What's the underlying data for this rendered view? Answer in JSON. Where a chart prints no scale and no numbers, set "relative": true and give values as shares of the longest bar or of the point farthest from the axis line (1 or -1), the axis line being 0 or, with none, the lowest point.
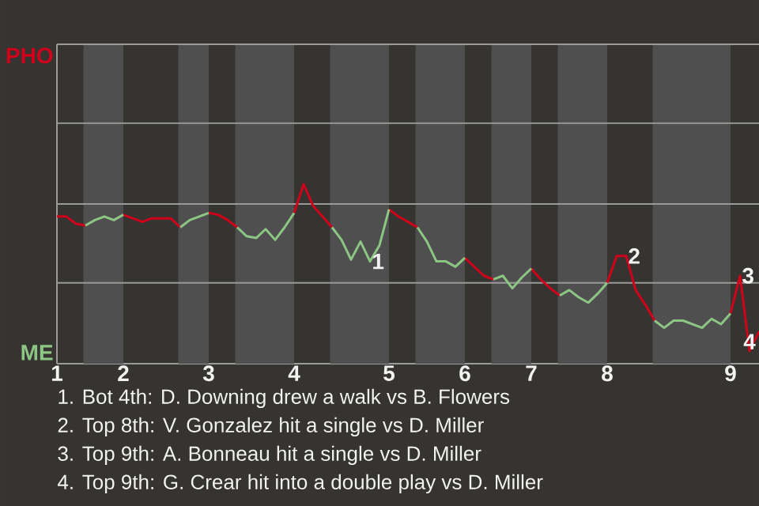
{
  "chart_data": {
    "type": "line",
    "relative": true,
    "tick_labels": "x",
    "line_style": "solid",
    "categories": [
      "1",
      null,
      null,
      null,
      null,
      null,
      null,
      "2",
      null,
      null,
      null,
      null,
      null,
      null,
      null,
      null,
      "3",
      null,
      null,
      null,
      null,
      null,
      null,
      null,
      null,
      "4",
      null,
      null,
      null,
      null,
      null,
      null,
      null,
      null,
      null,
      "5",
      null,
      null,
      null,
      null,
      null,
      null,
      null,
      "6",
      null,
      null,
      null,
      null,
      null,
      null,
      "7",
      null,
      null,
      null,
      null,
      null,
      null,
      null,
      "8",
      null,
      null,
      null,
      null,
      null,
      null,
      null,
      null,
      null,
      null,
      null,
      null,
      "9",
      null,
      null,
      null
    ],
    "ref_lines": [
      {
        "axis": "y",
        "value": 0.45,
        "color": "#9a9a9a"
      },
      {
        "axis": "y",
        "value": 0.89,
        "color": "#9a9a9a"
      },
      {
        "axis": "y",
        "value": 1.34,
        "color": "#9a9a9a"
      },
      {
        "axis": "y",
        "value": 1.78,
        "color": "#9a9a9a"
      }
    ],
    "series": [
      {
        "color": "#d0021b",
        "values": [
          0.82,
          0.82,
          0.78,
          0.77,
          null,
          null,
          null,
          0.83,
          0.81,
          0.79,
          0.81,
          0.81,
          0.81,
          0.76,
          null,
          null,
          0.84,
          0.83,
          0.8,
          0.76,
          null,
          null,
          null,
          null,
          null,
          0.84,
          1,
          0.88,
          0.82,
          0.76,
          null,
          null,
          null,
          null,
          null,
          0.86,
          0.82,
          0.79,
          0.76,
          null,
          null,
          null,
          null,
          0.59,
          0.54,
          0.49,
          0.47,
          null,
          null,
          null,
          0.53,
          0.47,
          0.42,
          0.38,
          null,
          null,
          null,
          null,
          0.45,
          0.6,
          0.6,
          0.41,
          0.33,
          0.24,
          null,
          null,
          null,
          null,
          null,
          null,
          null,
          0.28,
          0.49,
          0.07,
          0.18
        ]
      },
      {
        "color": "#8cc584",
        "values": [
          null,
          null,
          null,
          0.77,
          0.8,
          0.82,
          0.8,
          0.83,
          null,
          null,
          null,
          null,
          null,
          0.76,
          0.8,
          0.82,
          0.84,
          null,
          null,
          0.76,
          0.71,
          0.7,
          0.75,
          0.69,
          0.76,
          0.84,
          null,
          null,
          null,
          0.76,
          0.69,
          0.58,
          0.68,
          0.57,
          0.66,
          0.86,
          null,
          null,
          0.76,
          0.68,
          0.57,
          0.57,
          0.54,
          0.59,
          null,
          null,
          0.47,
          0.49,
          0.42,
          0.48,
          0.53,
          null,
          null,
          0.38,
          0.41,
          0.37,
          0.34,
          0.39,
          0.45,
          null,
          null,
          null,
          null,
          0.24,
          0.2,
          0.24,
          0.24,
          0.22,
          0.2,
          0.25,
          0.22,
          0.28,
          null,
          null,
          null
        ]
      }
    ],
    "annotations": [
      "PHO",
      "ME",
      {
        "text": "1",
        "y": 0.57
      },
      {
        "text": "2",
        "y": 0.6
      },
      {
        "text": "3",
        "y": 0.49
      },
      {
        "text": "4",
        "y": 0.07
      },
      "1. Bot 4th: D. Downing drew a walk vs B. Flowers",
      "2. Top 8th: V. Gonzalez hit a single vs D. Miller",
      "3. Top 9th: A. Bonneau hit a single vs D. Miller",
      "4. Top 9th: G. Crear hit into a double play vs D. Miller"
    ]
  }
}
